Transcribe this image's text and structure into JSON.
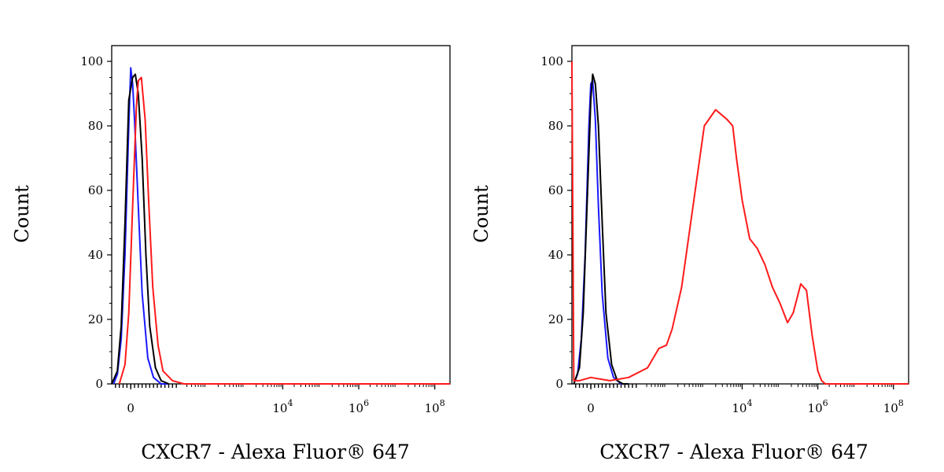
{
  "colors": {
    "blue": "#1a1aff",
    "black": "#000000",
    "red": "#ff1a1a"
  },
  "chart_data": [
    {
      "type": "line",
      "title": "",
      "xlabel": "CXCR7 - Alexa Fluor® 647",
      "ylabel": "Count",
      "ylim": [
        0,
        100
      ],
      "x_scale": "biexponential (linear near 0, log above)",
      "xlim_display": [
        -0.5,
        8.4
      ],
      "yticks": [
        "0",
        "20",
        "40",
        "60",
        "80",
        "100"
      ],
      "xticks": [
        {
          "base": "0",
          "exp": ""
        },
        {
          "base": "10",
          "exp": "4"
        },
        {
          "base": "10",
          "exp": "6"
        },
        {
          "base": "10",
          "exp": "8"
        }
      ],
      "grid": false,
      "legend": "none",
      "series": [
        {
          "color": "blue",
          "x": [
            -0.45,
            -0.35,
            -0.25,
            -0.15,
            -0.05,
            0.0,
            0.05,
            0.1,
            0.2,
            0.3,
            0.45,
            0.6,
            0.8,
            1.0
          ],
          "y": [
            0,
            3,
            14,
            40,
            80,
            98,
            93,
            82,
            55,
            28,
            8,
            2,
            0,
            0
          ]
        },
        {
          "color": "black",
          "x": [
            -0.5,
            -0.35,
            -0.25,
            -0.15,
            -0.05,
            0.05,
            0.12,
            0.2,
            0.3,
            0.4,
            0.5,
            0.65,
            0.8,
            1.0
          ],
          "y": [
            0,
            4,
            18,
            50,
            88,
            95,
            96,
            90,
            70,
            40,
            18,
            5,
            1,
            0
          ]
        },
        {
          "color": "red",
          "x": [
            -0.3,
            -0.15,
            -0.05,
            0.05,
            0.15,
            0.2,
            0.28,
            0.38,
            0.48,
            0.58,
            0.72,
            0.85,
            1.1,
            1.4,
            8.4
          ],
          "y": [
            0,
            6,
            22,
            55,
            86,
            94,
            95,
            82,
            55,
            30,
            12,
            4,
            1,
            0,
            0
          ]
        }
      ]
    },
    {
      "type": "line",
      "title": "",
      "xlabel": "CXCR7 - Alexa Fluor® 647",
      "ylabel": "Count",
      "ylim": [
        0,
        100
      ],
      "x_scale": "biexponential (linear near 0, log above)",
      "xlim_display": [
        -0.5,
        8.4
      ],
      "yticks": [
        "0",
        "20",
        "40",
        "60",
        "80",
        "100"
      ],
      "xticks": [
        {
          "base": "0",
          "exp": ""
        },
        {
          "base": "10",
          "exp": "4"
        },
        {
          "base": "10",
          "exp": "6"
        },
        {
          "base": "10",
          "exp": "8"
        }
      ],
      "grid": false,
      "legend": "none",
      "series": [
        {
          "color": "blue",
          "x": [
            -0.45,
            -0.35,
            -0.25,
            -0.15,
            -0.05,
            0.0,
            0.05,
            0.12,
            0.2,
            0.3,
            0.45,
            0.6,
            0.8,
            1.0
          ],
          "y": [
            0,
            3,
            14,
            40,
            80,
            93,
            94,
            82,
            55,
            28,
            8,
            2,
            0,
            0
          ]
        },
        {
          "color": "black",
          "x": [
            -0.45,
            -0.3,
            -0.2,
            -0.1,
            0.0,
            0.05,
            0.12,
            0.2,
            0.3,
            0.4,
            0.55,
            0.7,
            0.85,
            1.0
          ],
          "y": [
            0,
            5,
            22,
            55,
            88,
            96,
            93,
            80,
            50,
            22,
            6,
            1,
            0,
            0
          ]
        },
        {
          "color": "red",
          "x": [
            -0.5,
            -0.45,
            -0.3,
            0.0,
            0.5,
            1.0,
            1.5,
            1.8,
            2.0,
            2.15,
            2.4,
            2.7,
            3.0,
            3.3,
            3.6,
            3.75,
            3.85,
            4.0,
            4.2,
            4.4,
            4.6,
            4.8,
            5.0,
            5.2,
            5.35,
            5.55,
            5.7,
            5.85,
            6.0,
            6.1,
            6.2,
            6.3,
            8.4
          ],
          "y": [
            100,
            1,
            1,
            2,
            1,
            2,
            5,
            11,
            12,
            17,
            30,
            55,
            80,
            85,
            82,
            80,
            70,
            57,
            45,
            42,
            37,
            30,
            25,
            19,
            22,
            31,
            29,
            15,
            4,
            1,
            0,
            0,
            0
          ]
        }
      ]
    }
  ]
}
